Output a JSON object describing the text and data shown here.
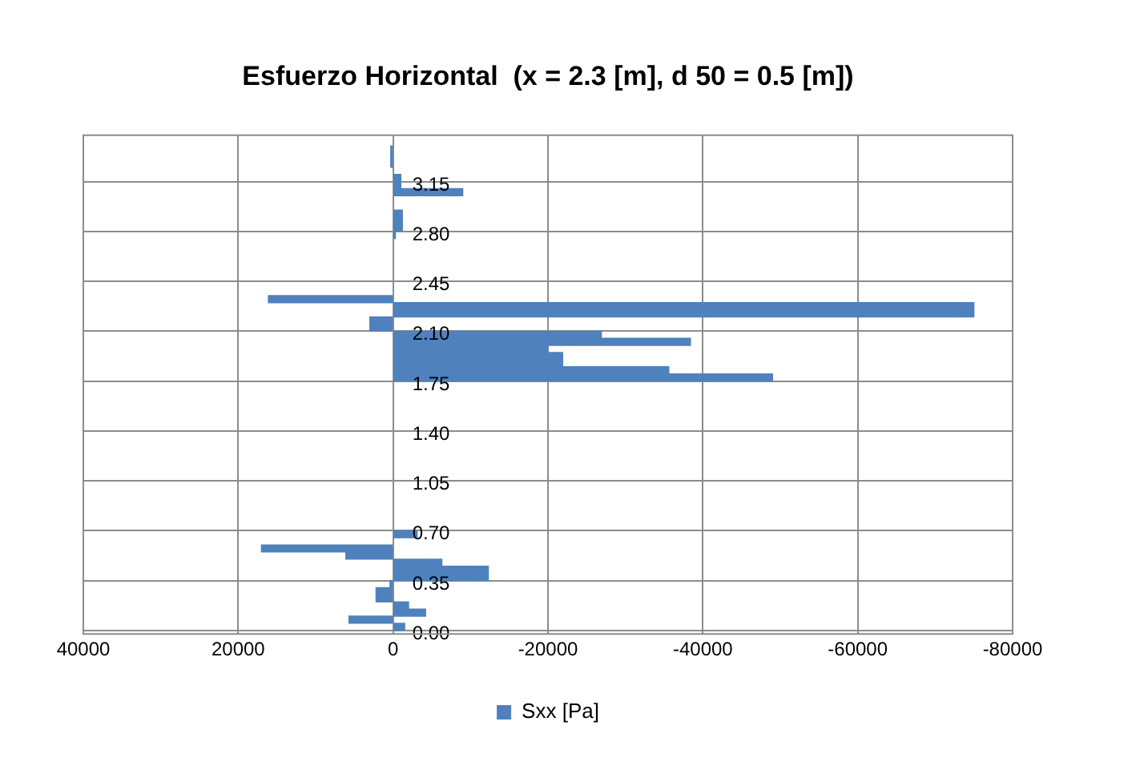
{
  "chart_data": {
    "type": "bar",
    "orientation": "horizontal",
    "title": "Esfuerzo Horizontal  (x = 2.3 [m], d 50 = 0.5 [m])",
    "categories": [
      null,
      null,
      null,
      null,
      null,
      null,
      null,
      "3.15",
      null,
      null,
      null,
      null,
      null,
      null,
      "2.80",
      null,
      null,
      null,
      null,
      null,
      null,
      "2.45",
      null,
      null,
      null,
      null,
      null,
      null,
      "2.10",
      null,
      null,
      null,
      null,
      null,
      null,
      "1.75",
      null,
      null,
      null,
      null,
      null,
      null,
      "1.40",
      null,
      null,
      null,
      null,
      null,
      null,
      "1.05",
      null,
      null,
      null,
      null,
      null,
      null,
      "0.70",
      null,
      null,
      null,
      null,
      null,
      null,
      "0.35",
      null,
      null,
      null,
      null,
      null,
      null,
      "0.00"
    ],
    "series": [
      {
        "name": "Sxx [Pa]",
        "color": "#4f81bd",
        "values": [
          null,
          null,
          300,
          300,
          300,
          null,
          -1000,
          -1000,
          -9000,
          null,
          null,
          -1200,
          -1200,
          -1200,
          -300,
          null,
          null,
          null,
          null,
          null,
          null,
          null,
          null,
          16100,
          -75000,
          -75000,
          3000,
          3000,
          -26900,
          -38400,
          -20000,
          -21900,
          -21900,
          -35600,
          -49000,
          null,
          null,
          null,
          null,
          null,
          null,
          null,
          null,
          null,
          null,
          null,
          null,
          null,
          null,
          null,
          null,
          null,
          null,
          null,
          null,
          null,
          -3100,
          null,
          17000,
          6100,
          -6300,
          -12300,
          -12300,
          400,
          2200,
          2200,
          -2000,
          -4200,
          5700,
          -1500,
          null
        ]
      }
    ],
    "xlim": [
      40000,
      -80000
    ],
    "xticks": [
      40000,
      20000,
      0,
      -20000,
      -40000,
      -60000,
      -80000
    ],
    "grid": true,
    "legend": "bottom"
  }
}
